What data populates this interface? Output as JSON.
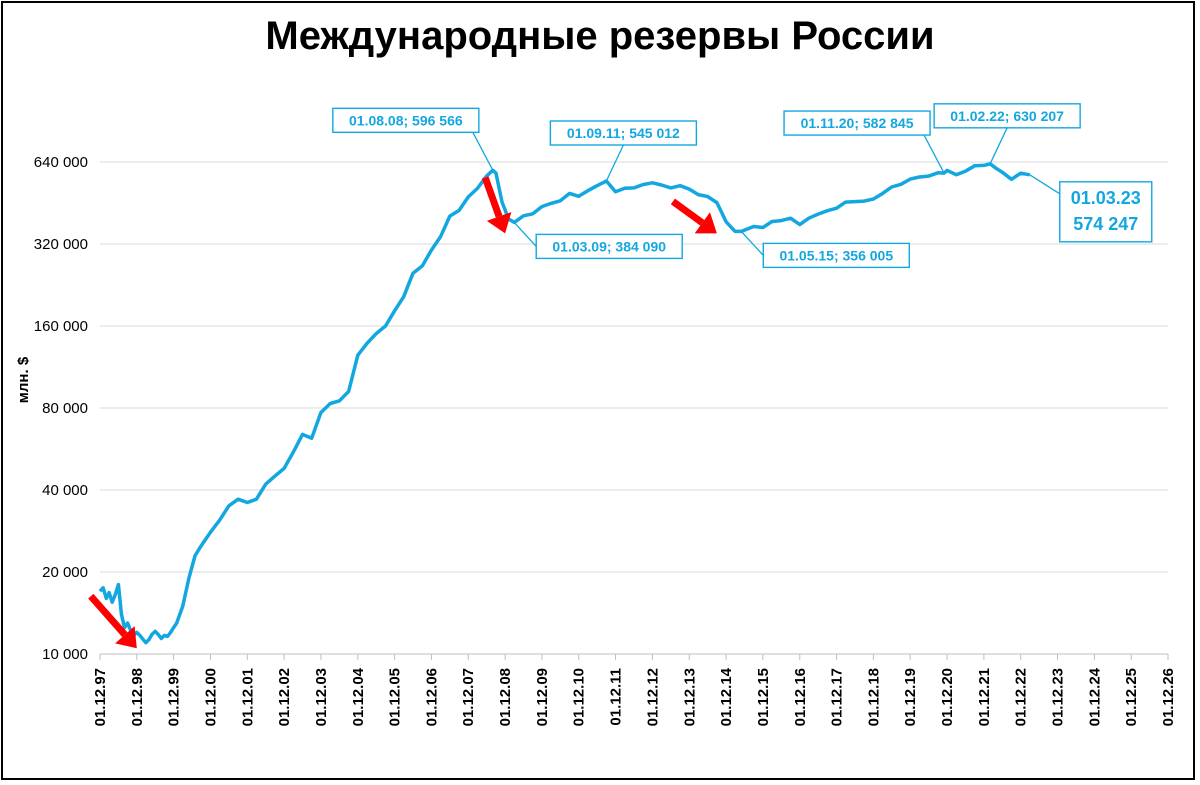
{
  "chart_data": {
    "type": "line",
    "title": "Международные резервы России",
    "ylabel": "млн. $",
    "xlabel": "",
    "y_scale": "log2",
    "ylim": [
      10000,
      640000
    ],
    "y_ticks": [
      10000,
      20000,
      40000,
      80000,
      160000,
      320000,
      640000
    ],
    "y_tick_labels": [
      "10 000",
      "20 000",
      "40 000",
      "80 000",
      "160 000",
      "320 000",
      "640 000"
    ],
    "x_ticks": [
      "1997-12-01",
      "1998-12-01",
      "1999-12-01",
      "2000-12-01",
      "2001-12-01",
      "2002-12-01",
      "2003-12-01",
      "2004-12-01",
      "2005-12-01",
      "2006-12-01",
      "2007-12-01",
      "2008-12-01",
      "2009-12-01",
      "2010-12-01",
      "2011-12-01",
      "2012-12-01",
      "2013-12-01",
      "2014-12-01",
      "2015-12-01",
      "2016-12-01",
      "2017-12-01",
      "2018-12-01",
      "2019-12-01",
      "2020-12-01",
      "2021-12-01",
      "2022-12-01",
      "2023-12-01",
      "2024-12-01",
      "2025-12-01",
      "2026-12-01"
    ],
    "x_tick_labels": [
      "01.12.97",
      "01.12.98",
      "01.12.99",
      "01.12.00",
      "01.12.01",
      "01.12.02",
      "01.12.03",
      "01.12.04",
      "01.12.05",
      "01.12.06",
      "01.12.07",
      "01.12.08",
      "01.12.09",
      "01.12.10",
      "01.12.11",
      "01.12.12",
      "01.12.13",
      "01.12.14",
      "01.12.15",
      "01.12.16",
      "01.12.17",
      "01.12.18",
      "01.12.19",
      "01.12.20",
      "01.12.21",
      "01.12.22",
      "01.12.23",
      "01.12.24",
      "01.12.25",
      "01.12.26"
    ],
    "grid": true,
    "line_color": "#13a7e0",
    "series": [
      {
        "points": [
          [
            "1997-12-01",
            17000
          ],
          [
            "1998-01-01",
            17500
          ],
          [
            "1998-02-01",
            16000
          ],
          [
            "1998-03-01",
            16800
          ],
          [
            "1998-04-01",
            15500
          ],
          [
            "1998-05-01",
            16500
          ],
          [
            "1998-06-01",
            18000
          ],
          [
            "1998-07-01",
            14000
          ],
          [
            "1998-08-01",
            12500
          ],
          [
            "1998-09-01",
            13000
          ],
          [
            "1998-10-01",
            12200
          ],
          [
            "1998-11-01",
            11700
          ],
          [
            "1998-12-01",
            12000
          ],
          [
            "1999-01-01",
            11700
          ],
          [
            "1999-02-01",
            11300
          ],
          [
            "1999-03-01",
            11000
          ],
          [
            "1999-04-01",
            11300
          ],
          [
            "1999-05-01",
            11800
          ],
          [
            "1999-06-01",
            12100
          ],
          [
            "1999-07-01",
            11800
          ],
          [
            "1999-08-01",
            11400
          ],
          [
            "1999-09-01",
            11700
          ],
          [
            "1999-10-01",
            11600
          ],
          [
            "1999-11-01",
            12000
          ],
          [
            "1999-12-01",
            12500
          ],
          [
            "2000-01-01",
            13000
          ],
          [
            "2000-03-01",
            15000
          ],
          [
            "2000-05-01",
            19000
          ],
          [
            "2000-07-01",
            23000
          ],
          [
            "2000-09-01",
            25000
          ],
          [
            "2000-11-01",
            27000
          ],
          [
            "2000-12-01",
            28000
          ],
          [
            "2001-03-01",
            31000
          ],
          [
            "2001-06-01",
            35000
          ],
          [
            "2001-09-01",
            37000
          ],
          [
            "2001-12-01",
            36000
          ],
          [
            "2002-03-01",
            37000
          ],
          [
            "2002-06-01",
            42000
          ],
          [
            "2002-09-01",
            45000
          ],
          [
            "2002-12-01",
            48000
          ],
          [
            "2003-03-01",
            55000
          ],
          [
            "2003-06-01",
            64000
          ],
          [
            "2003-09-01",
            62000
          ],
          [
            "2003-12-01",
            77000
          ],
          [
            "2004-03-01",
            83000
          ],
          [
            "2004-06-01",
            85000
          ],
          [
            "2004-09-01",
            92000
          ],
          [
            "2004-12-01",
            125000
          ],
          [
            "2005-03-01",
            138000
          ],
          [
            "2005-06-01",
            150000
          ],
          [
            "2005-09-01",
            160000
          ],
          [
            "2005-12-01",
            182000
          ],
          [
            "2006-03-01",
            205000
          ],
          [
            "2006-06-01",
            250000
          ],
          [
            "2006-09-01",
            266000
          ],
          [
            "2006-12-01",
            304000
          ],
          [
            "2007-03-01",
            340000
          ],
          [
            "2007-06-01",
            405000
          ],
          [
            "2007-09-01",
            425000
          ],
          [
            "2007-12-01",
            476000
          ],
          [
            "2008-03-01",
            512000
          ],
          [
            "2008-06-01",
            569000
          ],
          [
            "2008-08-01",
            596566
          ],
          [
            "2008-09-01",
            582000
          ],
          [
            "2008-10-01",
            515000
          ],
          [
            "2008-11-01",
            455000
          ],
          [
            "2008-12-01",
            427000
          ],
          [
            "2009-01-01",
            396000
          ],
          [
            "2009-03-01",
            384090
          ],
          [
            "2009-06-01",
            406000
          ],
          [
            "2009-09-01",
            413000
          ],
          [
            "2009-12-01",
            439000
          ],
          [
            "2010-03-01",
            451000
          ],
          [
            "2010-06-01",
            461000
          ],
          [
            "2010-09-01",
            491000
          ],
          [
            "2010-12-01",
            479000
          ],
          [
            "2011-03-01",
            502000
          ],
          [
            "2011-06-01",
            524000
          ],
          [
            "2011-09-01",
            545012
          ],
          [
            "2011-12-01",
            498000
          ],
          [
            "2012-03-01",
            513000
          ],
          [
            "2012-06-01",
            514000
          ],
          [
            "2012-09-01",
            529000
          ],
          [
            "2012-12-01",
            537000
          ],
          [
            "2013-03-01",
            527000
          ],
          [
            "2013-06-01",
            514000
          ],
          [
            "2013-09-01",
            524000
          ],
          [
            "2013-12-01",
            509000
          ],
          [
            "2014-03-01",
            486000
          ],
          [
            "2014-06-01",
            478000
          ],
          [
            "2014-09-01",
            454000
          ],
          [
            "2014-12-01",
            386000
          ],
          [
            "2015-03-01",
            356000
          ],
          [
            "2015-05-01",
            356005
          ],
          [
            "2015-09-01",
            371000
          ],
          [
            "2015-12-01",
            368000
          ],
          [
            "2016-03-01",
            387000
          ],
          [
            "2016-06-01",
            390000
          ],
          [
            "2016-09-01",
            398000
          ],
          [
            "2016-12-01",
            377000
          ],
          [
            "2017-03-01",
            398000
          ],
          [
            "2017-06-01",
            412000
          ],
          [
            "2017-09-01",
            424000
          ],
          [
            "2017-12-01",
            433000
          ],
          [
            "2018-03-01",
            456000
          ],
          [
            "2018-06-01",
            458000
          ],
          [
            "2018-09-01",
            460000
          ],
          [
            "2018-12-01",
            468000
          ],
          [
            "2019-03-01",
            490000
          ],
          [
            "2019-06-01",
            518000
          ],
          [
            "2019-09-01",
            530000
          ],
          [
            "2019-12-01",
            554000
          ],
          [
            "2020-03-01",
            564000
          ],
          [
            "2020-06-01",
            568000
          ],
          [
            "2020-09-01",
            584000
          ],
          [
            "2020-11-01",
            582845
          ],
          [
            "2020-12-01",
            596000
          ],
          [
            "2021-03-01",
            575000
          ],
          [
            "2021-06-01",
            592000
          ],
          [
            "2021-09-01",
            620000
          ],
          [
            "2021-12-01",
            622000
          ],
          [
            "2022-02-01",
            630207
          ],
          [
            "2022-04-01",
            607000
          ],
          [
            "2022-06-01",
            587000
          ],
          [
            "2022-09-01",
            553000
          ],
          [
            "2022-12-01",
            582000
          ],
          [
            "2023-03-01",
            574247
          ]
        ]
      }
    ],
    "annotations": [
      {
        "x": "2008-08-01",
        "y": 596566,
        "text": "01.08.08; 596 566",
        "label_side": "upper-left"
      },
      {
        "x": "2009-03-01",
        "y": 384090,
        "text": "01.03.09; 384 090",
        "label_side": "lower-right"
      },
      {
        "x": "2011-09-01",
        "y": 545012,
        "text": "01.09.11; 545 012",
        "label_side": "above"
      },
      {
        "x": "2015-05-01",
        "y": 356005,
        "text": "01.05.15; 356 005",
        "label_side": "lower-right"
      },
      {
        "x": "2020-11-01",
        "y": 582845,
        "text": "01.11.20; 582 845",
        "label_side": "upper-left"
      },
      {
        "x": "2022-02-01",
        "y": 630207,
        "text": "01.02.22; 630 207",
        "label_side": "above"
      }
    ],
    "final_label": {
      "x": "2023-03-01",
      "y": 574247,
      "date_text": "01.03.23",
      "value_text": "574 247"
    },
    "arrows": [
      {
        "x": "1998-12-01",
        "y": 10500,
        "color": "#ff0000"
      },
      {
        "x": "2008-12-01",
        "y": 350000,
        "color": "#ff0000"
      },
      {
        "x": "2014-09-01",
        "y": 350000,
        "color": "#ff0000"
      }
    ]
  }
}
